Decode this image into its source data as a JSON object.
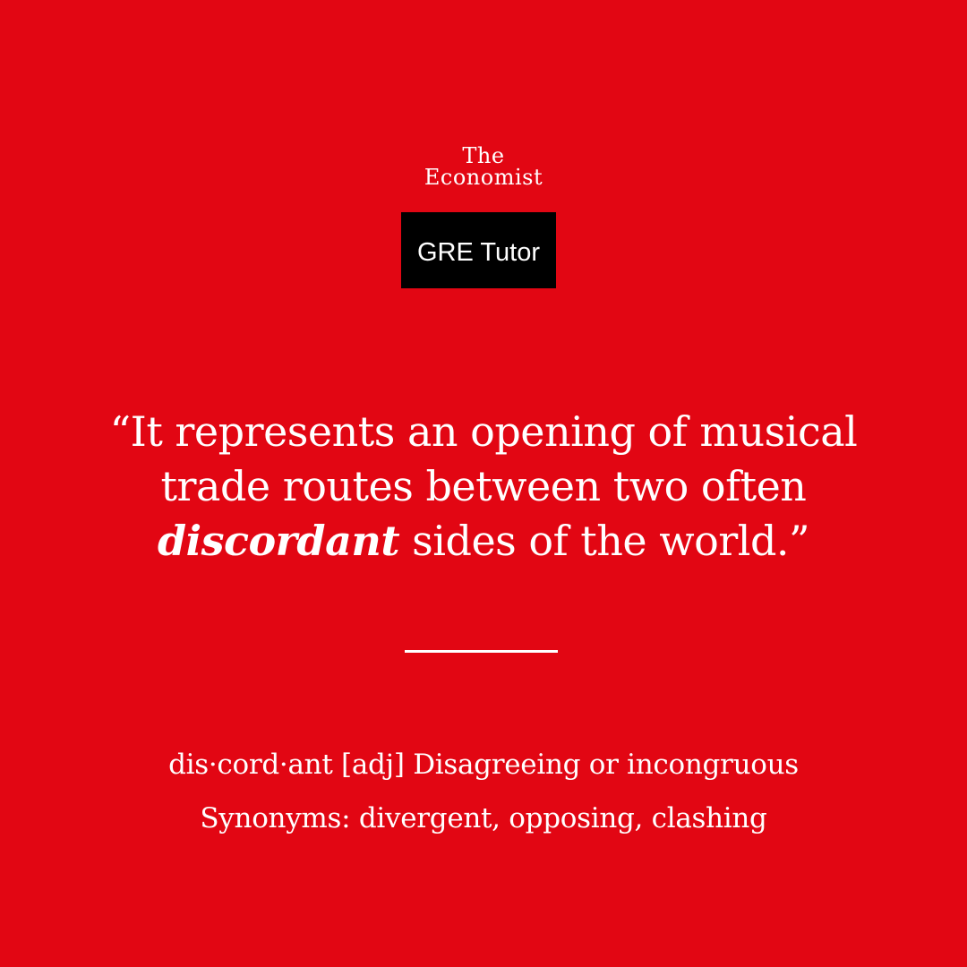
{
  "brand": {
    "logo_line1": "The",
    "logo_line2": "Economist",
    "badge_label": "GRE Tutor"
  },
  "quote": {
    "line1": "“It represents an opening of musical",
    "line2": "trade routes between two often",
    "keyword": "discordant",
    "line3_rest": " sides of the world.”"
  },
  "entry": {
    "definition": "dis·cord·ant [adj] Disagreeing or incongruous",
    "synonyms": "Synonyms: divergent, opposing, clashing"
  },
  "colors": {
    "background": "#e20613",
    "text": "#ffffff",
    "badge_background": "#000000"
  }
}
